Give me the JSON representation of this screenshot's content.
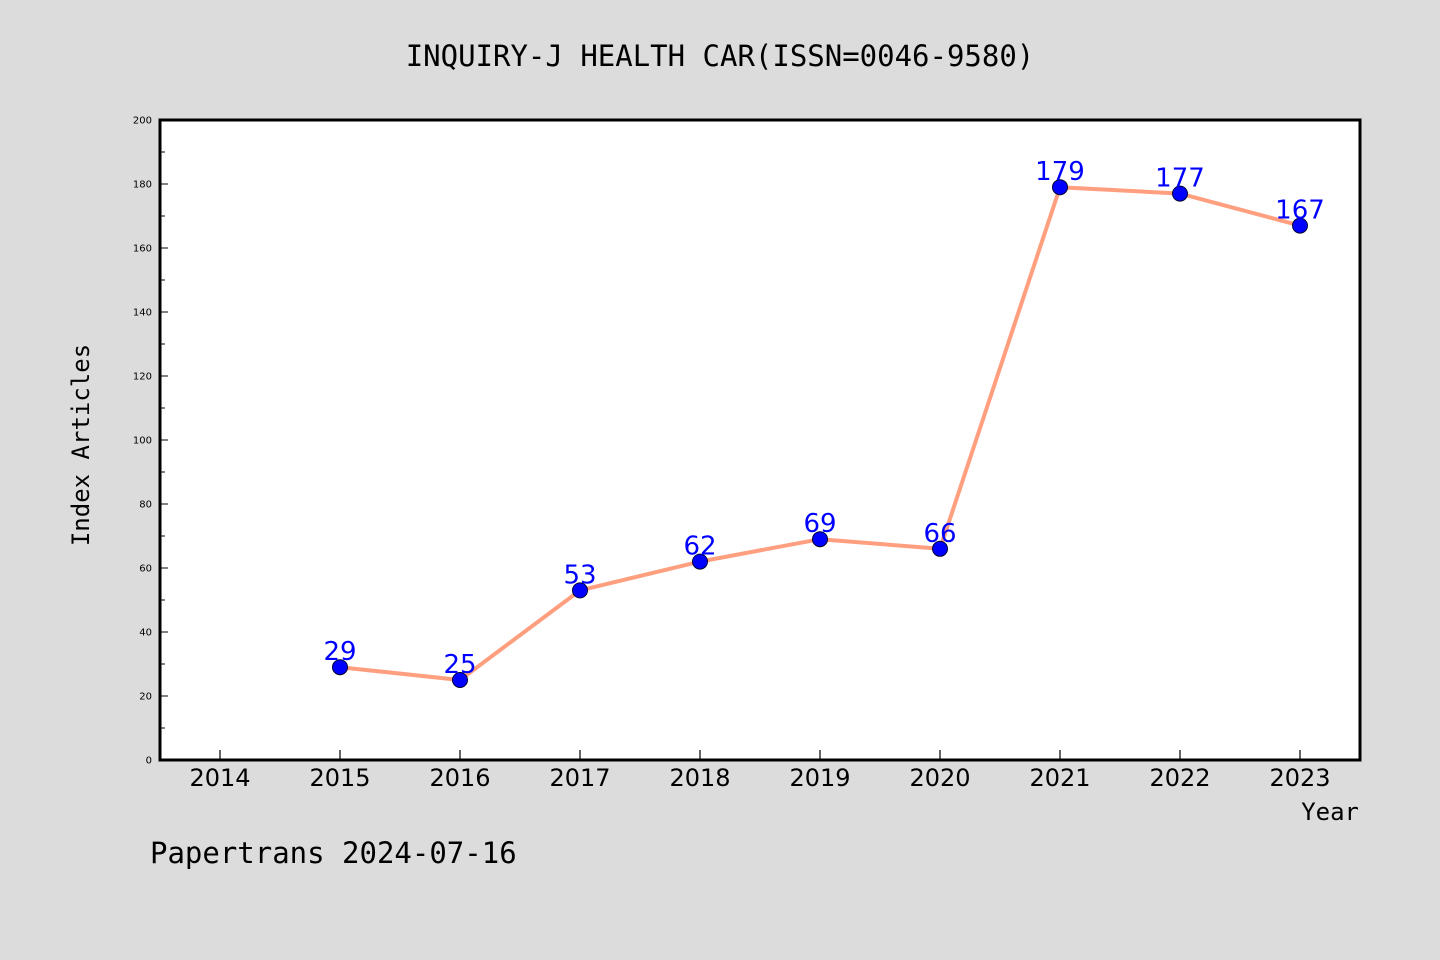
{
  "title": "INQUIRY-J HEALTH CAR(ISSN=0046-9580)",
  "footer": "Papertrans 2024-07-16",
  "colors": {
    "background": "#dcdcdc",
    "plot_background": "#ffffff",
    "line": "#ff9f7f",
    "marker": "#0000ff",
    "data_label": "#0000ff"
  },
  "chart_data": {
    "type": "line",
    "title": "INQUIRY-J HEALTH CAR(ISSN=0046-9580)",
    "xlabel": "Year",
    "ylabel": "Index Articles",
    "x_ticks": [
      "2014",
      "2015",
      "2016",
      "2017",
      "2018",
      "2019",
      "2020",
      "2021",
      "2022",
      "2023"
    ],
    "y_ticks": [
      "0",
      "20",
      "40",
      "60",
      "80",
      "100",
      "120",
      "140",
      "160",
      "180",
      "200"
    ],
    "xlim": [
      2013.5,
      2023.5
    ],
    "ylim": [
      0,
      200
    ],
    "grid": false,
    "series": [
      {
        "x": [
          2015,
          2016,
          2017,
          2018,
          2019,
          2020,
          2021,
          2022,
          2023
        ],
        "values": [
          29,
          25,
          53,
          62,
          69,
          66,
          179,
          177,
          167
        ],
        "labels": [
          "29",
          "25",
          "53",
          "62",
          "69",
          "66",
          "179",
          "177",
          "167"
        ]
      }
    ]
  }
}
